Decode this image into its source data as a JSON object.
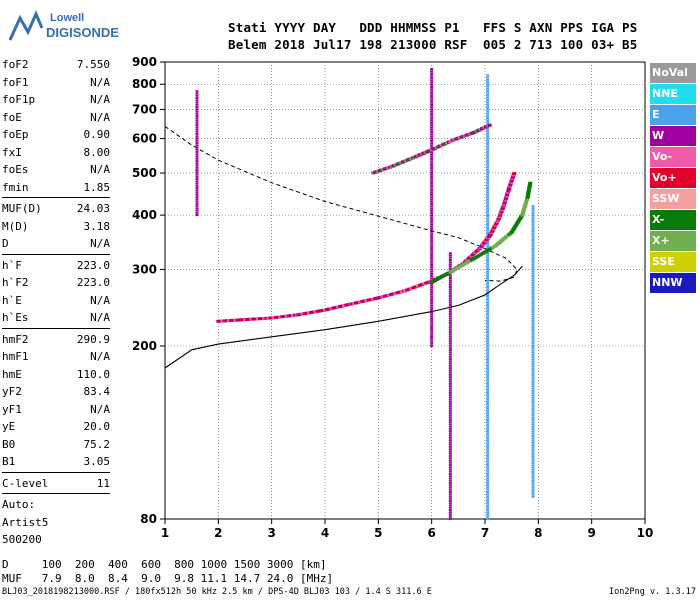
{
  "logo": {
    "top": "Lowell",
    "bottom": "DIGISONDE"
  },
  "header": {
    "line1": "Stati YYYY DAY   DDD HHMMSS P1   FFS S AXN PPS IGA PS",
    "line2": "Belem 2018 Jul17 198 213000 RSF  005 2 713 100 03+ B5"
  },
  "params_group1": [
    {
      "label": "foF2",
      "value": "7.550"
    },
    {
      "label": "foF1",
      "value": "N/A"
    },
    {
      "label": "foF1p",
      "value": "N/A"
    },
    {
      "label": "foE",
      "value": "N/A"
    },
    {
      "label": "foEp",
      "value": "0.90"
    },
    {
      "label": "fxI",
      "value": "8.00"
    },
    {
      "label": "foEs",
      "value": "N/A"
    },
    {
      "label": "fmin",
      "value": "1.85"
    }
  ],
  "params_group2": [
    {
      "label": "MUF(D)",
      "value": "24.03"
    },
    {
      "label": "M(D)",
      "value": "3.18"
    },
    {
      "label": "D",
      "value": "N/A"
    }
  ],
  "params_group3": [
    {
      "label": "h`F",
      "value": "223.0"
    },
    {
      "label": "h`F2",
      "value": "223.0"
    },
    {
      "label": "h`E",
      "value": "N/A"
    },
    {
      "label": "h`Es",
      "value": "N/A"
    }
  ],
  "params_group4": [
    {
      "label": "hmF2",
      "value": "290.9"
    },
    {
      "label": "hmF1",
      "value": "N/A"
    },
    {
      "label": "hmE",
      "value": "110.0"
    },
    {
      "label": "yF2",
      "value": "83.4"
    },
    {
      "label": "yF1",
      "value": "N/A"
    },
    {
      "label": "yE",
      "value": "20.0"
    },
    {
      "label": "B0",
      "value": "75.2"
    },
    {
      "label": "B1",
      "value": "3.05"
    }
  ],
  "params_group5": [
    {
      "label": "C-level",
      "value": "11"
    }
  ],
  "auto": {
    "line1": "Auto:",
    "line2": "Artist5",
    "line3": "500200"
  },
  "bottom_table": {
    "d_row": "D     100  200  400  600  800 1000 1500 3000 [km]",
    "muf_row": "MUF   7.9  8.0  8.4  9.0  9.8 11.1 14.7 24.0 [MHz]"
  },
  "file_line": "BLJ03_2018198213000.RSF / 180fx512h 50 kHz 2.5 km / DPS-4D BLJ03 103 / 1.4 S 311.6 E",
  "version": "Ion2Png v. 1.3.17",
  "legend": [
    {
      "label": "NoVal",
      "color": "#9a9a9a"
    },
    {
      "label": "NNE",
      "color": "#22ddee"
    },
    {
      "label": "E",
      "color": "#4aa3ea"
    },
    {
      "label": "W",
      "color": "#a000a0"
    },
    {
      "label": "Vo-",
      "color": "#f05aa8"
    },
    {
      "label": "Vo+",
      "color": "#e0002a"
    },
    {
      "label": "SSW",
      "color": "#f4a0a0"
    },
    {
      "label": "X-",
      "color": "#0a7a0a"
    },
    {
      "label": "X+",
      "color": "#70b050"
    },
    {
      "label": "SSE",
      "color": "#d0d000"
    },
    {
      "label": "NNW",
      "color": "#1a1ac0"
    }
  ],
  "chart_data": {
    "type": "scatter",
    "xlabel": "",
    "ylabel": "",
    "xlim": [
      1,
      10
    ],
    "ylim": [
      80,
      900
    ],
    "y_log_scale": true,
    "x_ticks": [
      "1",
      "2",
      "3",
      "4",
      "5",
      "6",
      "7",
      "8",
      "9",
      "10"
    ],
    "y_ticks": [
      "80",
      "200",
      "300",
      "400",
      "500",
      "600",
      "700",
      "800",
      "900"
    ],
    "y_tick_values": [
      80,
      200,
      300,
      400,
      500,
      600,
      700,
      800,
      900
    ],
    "grid": "dotted",
    "o_trace": [
      {
        "x": 2.0,
        "y": 228
      },
      {
        "x": 2.5,
        "y": 230
      },
      {
        "x": 3.0,
        "y": 232
      },
      {
        "x": 3.5,
        "y": 236
      },
      {
        "x": 4.0,
        "y": 242
      },
      {
        "x": 4.5,
        "y": 250
      },
      {
        "x": 5.0,
        "y": 258
      },
      {
        "x": 5.5,
        "y": 268
      },
      {
        "x": 6.0,
        "y": 282
      },
      {
        "x": 6.3,
        "y": 293
      },
      {
        "x": 6.6,
        "y": 310
      },
      {
        "x": 6.9,
        "y": 335
      },
      {
        "x": 7.1,
        "y": 360
      },
      {
        "x": 7.25,
        "y": 390
      },
      {
        "x": 7.35,
        "y": 420
      },
      {
        "x": 7.45,
        "y": 460
      },
      {
        "x": 7.55,
        "y": 500
      }
    ],
    "x_trace": [
      {
        "x": 6.0,
        "y": 280
      },
      {
        "x": 6.4,
        "y": 298
      },
      {
        "x": 6.8,
        "y": 318
      },
      {
        "x": 7.2,
        "y": 340
      },
      {
        "x": 7.5,
        "y": 365
      },
      {
        "x": 7.7,
        "y": 400
      },
      {
        "x": 7.8,
        "y": 440
      },
      {
        "x": 7.85,
        "y": 475
      }
    ],
    "f2_upper_trace": [
      {
        "x": 4.9,
        "y": 500
      },
      {
        "x": 5.3,
        "y": 520
      },
      {
        "x": 5.7,
        "y": 545
      },
      {
        "x": 6.0,
        "y": 565
      },
      {
        "x": 6.4,
        "y": 595
      },
      {
        "x": 6.8,
        "y": 620
      },
      {
        "x": 7.1,
        "y": 645
      }
    ],
    "profile_curve": [
      {
        "x": 1.0,
        "y": 178
      },
      {
        "x": 1.5,
        "y": 196
      },
      {
        "x": 2.0,
        "y": 202
      },
      {
        "x": 3.0,
        "y": 210
      },
      {
        "x": 4.0,
        "y": 218
      },
      {
        "x": 5.0,
        "y": 228
      },
      {
        "x": 6.0,
        "y": 240
      },
      {
        "x": 6.5,
        "y": 248
      },
      {
        "x": 7.0,
        "y": 262
      },
      {
        "x": 7.3,
        "y": 278
      },
      {
        "x": 7.55,
        "y": 291
      },
      {
        "x": 7.7,
        "y": 305
      }
    ],
    "muf_curve": [
      {
        "x": 1.0,
        "y": 640
      },
      {
        "x": 1.5,
        "y": 580
      },
      {
        "x": 2.0,
        "y": 535
      },
      {
        "x": 3.0,
        "y": 475
      },
      {
        "x": 4.0,
        "y": 430
      },
      {
        "x": 5.0,
        "y": 398
      },
      {
        "x": 6.0,
        "y": 368
      },
      {
        "x": 6.5,
        "y": 355
      },
      {
        "x": 7.0,
        "y": 335
      },
      {
        "x": 7.4,
        "y": 318
      },
      {
        "x": 7.6,
        "y": 300
      },
      {
        "x": 7.55,
        "y": 288
      },
      {
        "x": 7.3,
        "y": 282
      },
      {
        "x": 7.0,
        "y": 283
      }
    ],
    "vertical_echo_columns": [
      {
        "x": 1.6,
        "from": 400,
        "to": 780,
        "color": "#a000a0"
      },
      {
        "x": 6.0,
        "from": 200,
        "to": 870,
        "color": "#a000a0"
      },
      {
        "x": 6.35,
        "from": 80,
        "to": 330,
        "color": "#a000a0"
      },
      {
        "x": 7.05,
        "from": 80,
        "to": 840,
        "color": "#4aa3ea"
      },
      {
        "x": 7.9,
        "from": 90,
        "to": 420,
        "color": "#4aa3ea"
      }
    ]
  }
}
